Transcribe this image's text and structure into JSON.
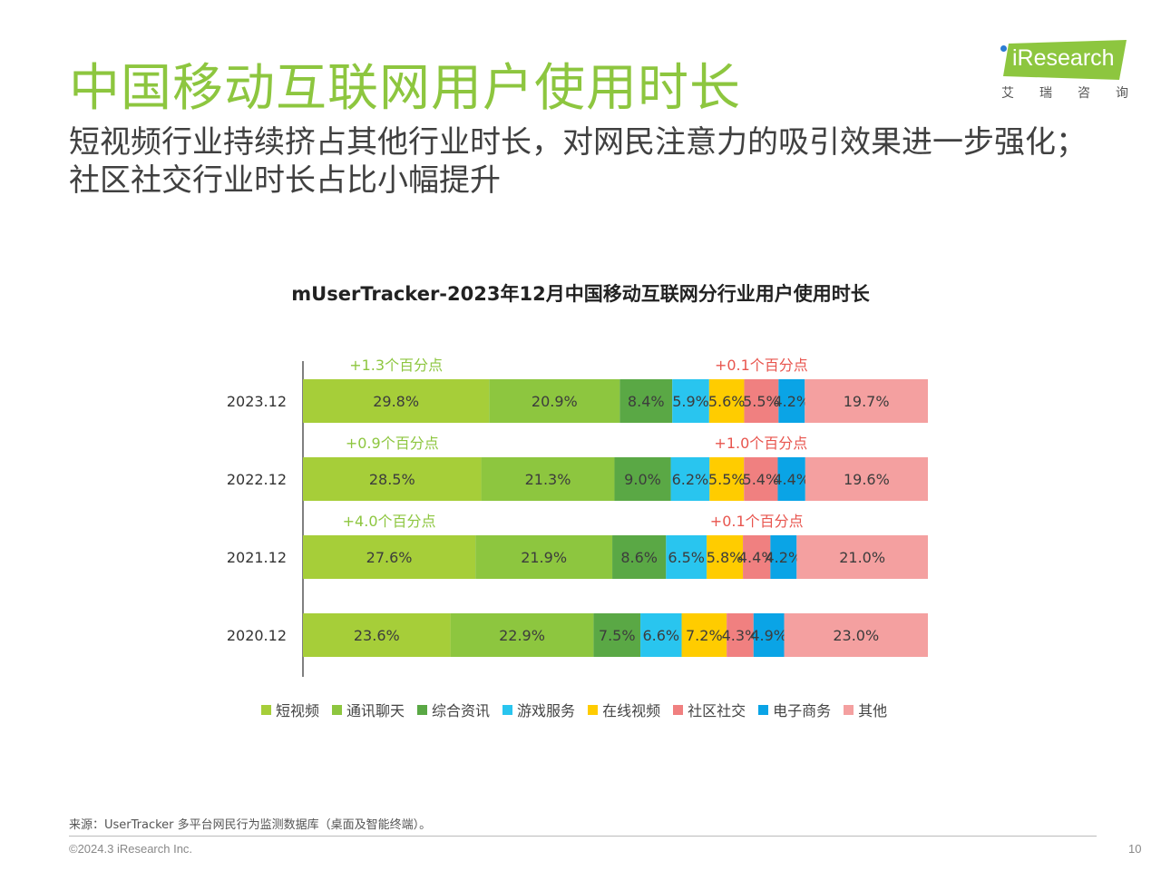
{
  "header": {
    "title": "中国移动互联网用户使用时长",
    "subtitle": "短视频行业持续挤占其他行业时长，对网民注意力的吸引效果进一步强化；社区社交行业时长占比小幅提升"
  },
  "logo": {
    "brand": "iResearch",
    "brand_cn": [
      "艾",
      "瑞",
      "咨",
      "询"
    ],
    "color": "#8dc63f"
  },
  "chart_data": {
    "type": "bar",
    "orientation": "horizontal",
    "stacked": true,
    "normalized": true,
    "title": "mUserTracker-2023年12月中国移动互联网分行业用户使用时长",
    "categories": [
      "2023.12",
      "2022.12",
      "2021.12",
      "2020.12"
    ],
    "series": [
      {
        "name": "短视频",
        "color": "#a6ce39",
        "values": [
          29.8,
          28.5,
          27.6,
          23.6
        ]
      },
      {
        "name": "通讯聊天",
        "color": "#8dc63f",
        "values": [
          20.9,
          21.3,
          21.9,
          22.9
        ]
      },
      {
        "name": "综合资讯",
        "color": "#5aa845",
        "values": [
          8.4,
          9.0,
          8.6,
          7.5
        ]
      },
      {
        "name": "游戏服务",
        "color": "#29c5ef",
        "values": [
          5.9,
          6.2,
          6.5,
          6.6
        ]
      },
      {
        "name": "在线视频",
        "color": "#ffcc00",
        "values": [
          5.6,
          5.5,
          5.8,
          7.2
        ]
      },
      {
        "name": "社区社交",
        "color": "#f08080",
        "values": [
          5.5,
          5.4,
          4.4,
          4.3
        ]
      },
      {
        "name": "电子商务",
        "color": "#0aa4e6",
        "values": [
          4.2,
          4.4,
          4.2,
          4.9
        ]
      },
      {
        "name": "其他",
        "color": "#f4a0a0",
        "values": [
          19.7,
          19.6,
          21.0,
          23.0
        ]
      }
    ],
    "data_labels": [
      [
        "29.8%",
        "20.9%",
        "8.4%",
        "5.9%",
        "5.6%",
        "5.5%",
        "4.2%",
        "19.7%"
      ],
      [
        "28.5%",
        "21.3%",
        "9.0%",
        "6.2%",
        "5.5%",
        "5.4%",
        "4.4%",
        "19.6%"
      ],
      [
        "27.6%",
        "21.9%",
        "8.6%",
        "6.5%",
        "5.8%",
        "4.4%",
        "4.2%",
        "21.0%"
      ],
      [
        "23.6%",
        "22.9%",
        "7.5%",
        "6.6%",
        "7.2%",
        "4.3%",
        "4.9%",
        "23.0%"
      ]
    ],
    "annotations": [
      {
        "category": "2023.12",
        "series": "短视频",
        "text": "+1.3个百分点",
        "color": "#8dc63f"
      },
      {
        "category": "2023.12",
        "series": "社区社交",
        "text": "+0.1个百分点",
        "color": "#e8554e"
      },
      {
        "category": "2022.12",
        "series": "短视频",
        "text": "+0.9个百分点",
        "color": "#8dc63f"
      },
      {
        "category": "2022.12",
        "series": "社区社交",
        "text": "+1.0个百分点",
        "color": "#e8554e"
      },
      {
        "category": "2021.12",
        "series": "短视频",
        "text": "+4.0个百分点",
        "color": "#8dc63f"
      },
      {
        "category": "2021.12",
        "series": "社区社交",
        "text": "+0.1个百分点",
        "color": "#e8554e"
      }
    ],
    "legend_position": "bottom",
    "grid": false
  },
  "footer": {
    "source": "来源：UserTracker 多平台网民行为监测数据库（桌面及智能终端）。",
    "copyright": "©2024.3 iResearch Inc.",
    "page_number": "10"
  }
}
